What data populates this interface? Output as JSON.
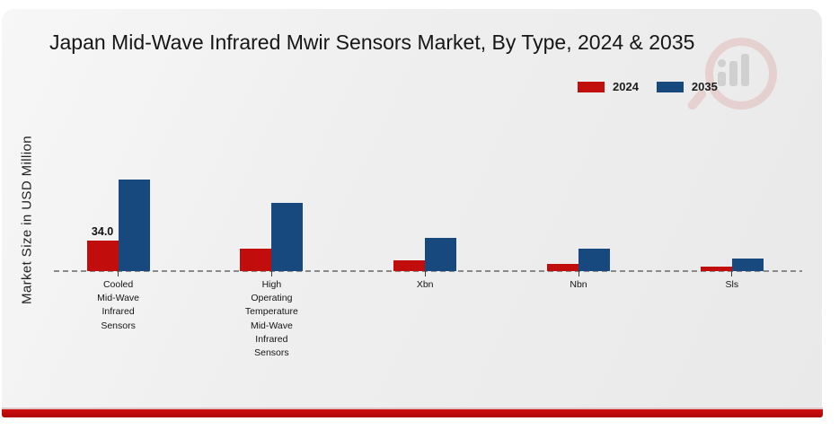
{
  "chart_data": {
    "type": "bar",
    "title": "Japan Mid-Wave Infrared Mwir Sensors Market, By Type, 2024 & 2035",
    "ylabel": "Market Size in USD Million",
    "xlabel": "",
    "categories": [
      "Cooled\nMid-Wave\nInfrared\nSensors",
      "High\nOperating\nTemperature\nMid-Wave\nInfrared\nSensors",
      "Xbn",
      "Nbn",
      "Sls"
    ],
    "series": [
      {
        "name": "2024",
        "color": "#c20d0d",
        "values": [
          34.0,
          24.5,
          11.5,
          8.0,
          4.5
        ]
      },
      {
        "name": "2035",
        "color": "#17497f",
        "values": [
          101.5,
          75.5,
          37.0,
          25.0,
          14.0
        ]
      }
    ],
    "value_labels": [
      {
        "series": "2024",
        "category_index": 0,
        "text": "34.0"
      }
    ],
    "legend_position": "top-right",
    "axis_style": {
      "y_axis_visible": false,
      "x_baseline": "dashed-gray",
      "gridlines": false
    },
    "units": "USD Million"
  },
  "watermark": {
    "icon": "magnifier-bar-chart-logo"
  },
  "footer": {
    "accent_color": "#b50707"
  }
}
